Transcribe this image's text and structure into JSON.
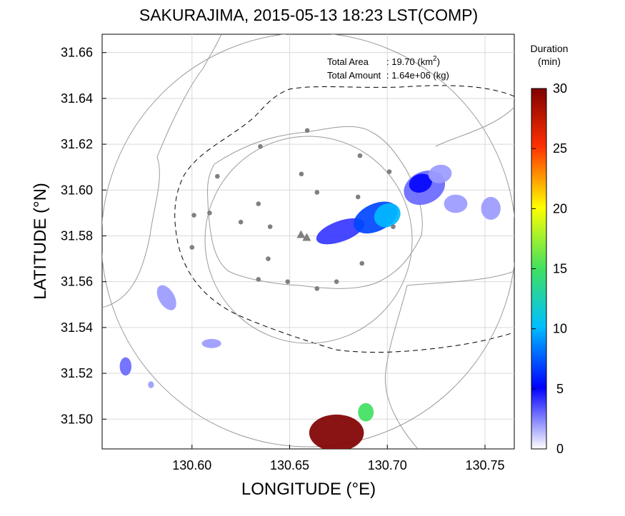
{
  "chart_data": {
    "type": "heatmap",
    "title": "SAKURAJIMA, 2015-05-13 18:23 LST(COMP)",
    "xlabel": "LONGITUDE (°E)",
    "ylabel": "LATITUDE (°N)",
    "xlim": [
      130.554,
      130.765
    ],
    "ylim": [
      31.487,
      31.668
    ],
    "xticks": [
      "130.60",
      "130.65",
      "130.70",
      "130.75"
    ],
    "yticks": [
      "31.50",
      "31.52",
      "31.54",
      "31.56",
      "31.58",
      "31.60",
      "31.62",
      "31.64",
      "31.66"
    ],
    "grid": true,
    "annotation": {
      "area_label": "Total Area",
      "area_value": ": 19.70 (km",
      "area_sup": "2",
      "area_close": ")",
      "amount_label": "Total Amount",
      "amount_value": ": 1.64e+06 (kg)"
    },
    "colorbar": {
      "title_line1": "Duration",
      "title_line2": "(min)",
      "range": [
        0,
        30
      ],
      "ticks": [
        "0",
        "5",
        "10",
        "15",
        "20",
        "25",
        "30"
      ]
    },
    "vent": {
      "x": 130.658,
      "y": 31.58
    },
    "stations": [
      {
        "x": 130.659,
        "y": 31.626
      },
      {
        "x": 130.635,
        "y": 31.619
      },
      {
        "x": 130.686,
        "y": 31.615
      },
      {
        "x": 130.613,
        "y": 31.606
      },
      {
        "x": 130.656,
        "y": 31.607
      },
      {
        "x": 130.701,
        "y": 31.608
      },
      {
        "x": 130.664,
        "y": 31.599
      },
      {
        "x": 130.609,
        "y": 31.59
      },
      {
        "x": 130.601,
        "y": 31.589
      },
      {
        "x": 130.634,
        "y": 31.594
      },
      {
        "x": 130.625,
        "y": 31.586
      },
      {
        "x": 130.64,
        "y": 31.584
      },
      {
        "x": 130.685,
        "y": 31.597
      },
      {
        "x": 130.703,
        "y": 31.584
      },
      {
        "x": 130.6,
        "y": 31.575
      },
      {
        "x": 130.639,
        "y": 31.57
      },
      {
        "x": 130.687,
        "y": 31.568
      },
      {
        "x": 130.634,
        "y": 31.561
      },
      {
        "x": 130.649,
        "y": 31.56
      },
      {
        "x": 130.664,
        "y": 31.557
      },
      {
        "x": 130.674,
        "y": 31.56
      }
    ],
    "deposit_regions": [
      {
        "cx": 130.676,
        "cy": 31.582,
        "rx": 0.013,
        "ry": 0.0045,
        "rot": -20,
        "duration": 4
      },
      {
        "cx": 130.694,
        "cy": 31.588,
        "rx": 0.012,
        "ry": 0.006,
        "rot": -25,
        "duration": 7
      },
      {
        "cx": 130.7,
        "cy": 31.589,
        "rx": 0.007,
        "ry": 0.005,
        "rot": -30,
        "duration": 10
      },
      {
        "cx": 130.719,
        "cy": 31.601,
        "rx": 0.011,
        "ry": 0.007,
        "rot": -25,
        "duration": 3
      },
      {
        "cx": 130.717,
        "cy": 31.603,
        "rx": 0.006,
        "ry": 0.004,
        "rot": -20,
        "duration": 5
      },
      {
        "cx": 130.727,
        "cy": 31.607,
        "rx": 0.006,
        "ry": 0.004,
        "rot": -10,
        "duration": 2
      },
      {
        "cx": 130.735,
        "cy": 31.594,
        "rx": 0.006,
        "ry": 0.004,
        "rot": 0,
        "duration": 2
      },
      {
        "cx": 130.753,
        "cy": 31.592,
        "rx": 0.005,
        "ry": 0.005,
        "rot": 0,
        "duration": 2
      },
      {
        "cx": 130.587,
        "cy": 31.553,
        "rx": 0.004,
        "ry": 0.006,
        "rot": -30,
        "duration": 2
      },
      {
        "cx": 130.61,
        "cy": 31.533,
        "rx": 0.005,
        "ry": 0.002,
        "rot": 0,
        "duration": 2
      },
      {
        "cx": 130.566,
        "cy": 31.523,
        "rx": 0.003,
        "ry": 0.004,
        "rot": 0,
        "duration": 3
      },
      {
        "cx": 130.579,
        "cy": 31.515,
        "rx": 0.0015,
        "ry": 0.0015,
        "rot": 0,
        "duration": 2
      },
      {
        "cx": 130.674,
        "cy": 31.494,
        "rx": 0.014,
        "ry": 0.008,
        "rot": 0,
        "duration": 30
      },
      {
        "cx": 130.689,
        "cy": 31.503,
        "rx": 0.004,
        "ry": 0.004,
        "rot": 0,
        "duration": 15
      }
    ]
  }
}
